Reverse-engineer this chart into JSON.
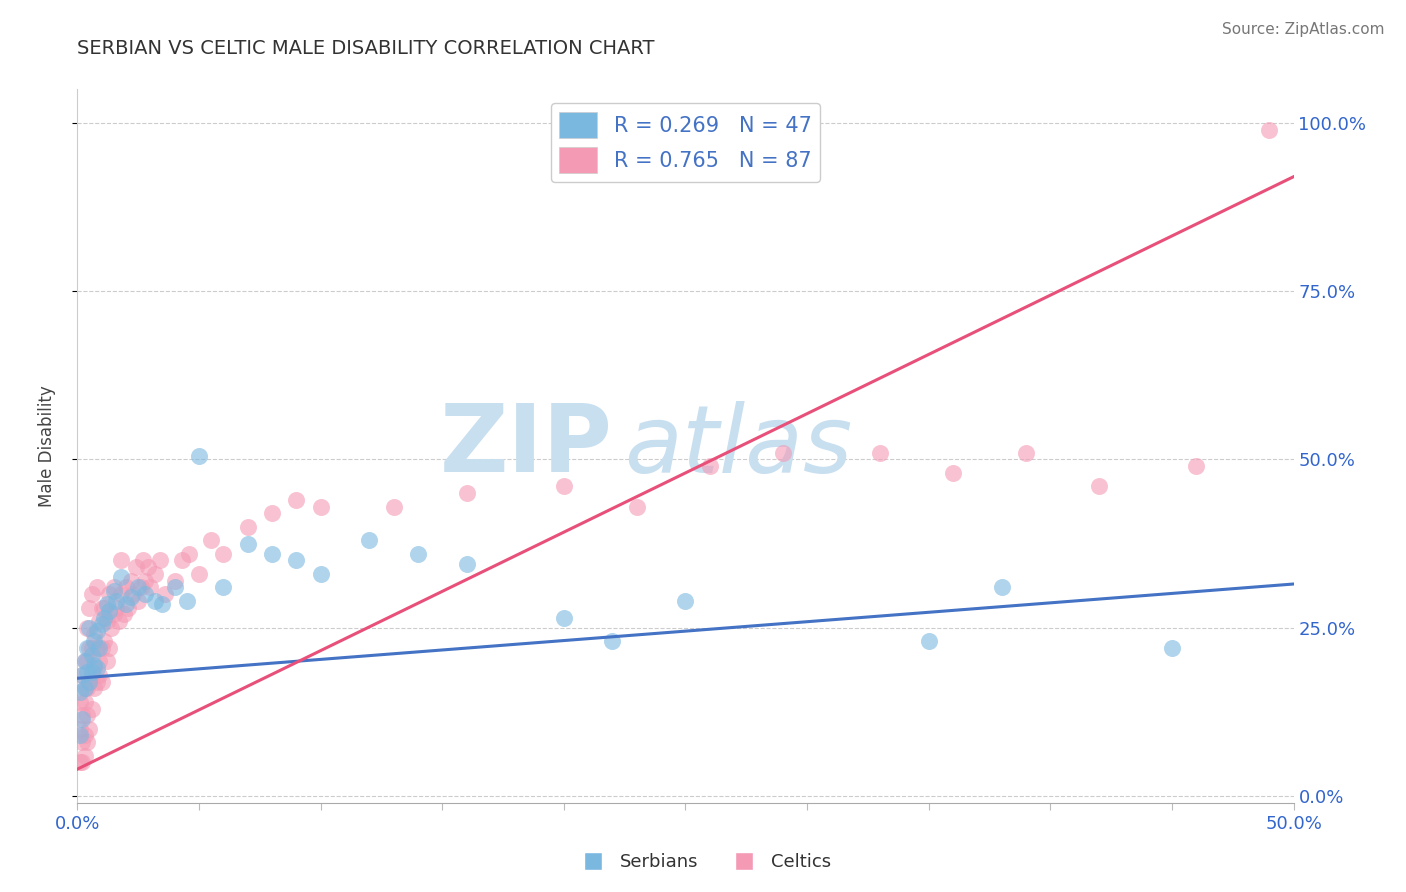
{
  "title": "SERBIAN VS CELTIC MALE DISABILITY CORRELATION CHART",
  "source": "Source: ZipAtlas.com",
  "ylabel": "Male Disability",
  "xlim": [
    0.0,
    0.5
  ],
  "ylim": [
    -0.01,
    1.05
  ],
  "xticks": [
    0.0,
    0.05,
    0.1,
    0.15,
    0.2,
    0.25,
    0.3,
    0.35,
    0.4,
    0.45,
    0.5
  ],
  "yticks": [
    0.0,
    0.25,
    0.5,
    0.75,
    1.0
  ],
  "ytick_labels": [
    "0.0%",
    "25.0%",
    "50.0%",
    "75.0%",
    "100.0%"
  ],
  "serbian_color": "#7ab8e0",
  "celtic_color": "#f49ab5",
  "serbian_line_color": "#4472c4",
  "celtic_line_color": "#e8507a",
  "serbian_R": 0.269,
  "serbian_N": 47,
  "celtic_R": 0.765,
  "celtic_N": 87,
  "watermark": "ZIPatlas",
  "watermark_color": "#c8dff0",
  "serbian_line_x": [
    0.0,
    0.5
  ],
  "serbian_line_y": [
    0.175,
    0.315
  ],
  "celtic_line_x": [
    0.0,
    0.5
  ],
  "celtic_line_y": [
    0.04,
    0.92
  ],
  "serbian_x": [
    0.001,
    0.001,
    0.002,
    0.002,
    0.003,
    0.003,
    0.004,
    0.004,
    0.005,
    0.005,
    0.006,
    0.006,
    0.007,
    0.007,
    0.008,
    0.008,
    0.009,
    0.01,
    0.011,
    0.012,
    0.013,
    0.015,
    0.016,
    0.018,
    0.02,
    0.022,
    0.025,
    0.028,
    0.032,
    0.035,
    0.04,
    0.045,
    0.05,
    0.06,
    0.07,
    0.08,
    0.09,
    0.1,
    0.12,
    0.14,
    0.16,
    0.2,
    0.22,
    0.25,
    0.35,
    0.38,
    0.45
  ],
  "serbian_y": [
    0.155,
    0.09,
    0.18,
    0.115,
    0.2,
    0.16,
    0.22,
    0.185,
    0.17,
    0.25,
    0.21,
    0.185,
    0.23,
    0.195,
    0.245,
    0.19,
    0.22,
    0.255,
    0.265,
    0.285,
    0.275,
    0.305,
    0.29,
    0.325,
    0.285,
    0.295,
    0.31,
    0.3,
    0.29,
    0.285,
    0.31,
    0.29,
    0.505,
    0.31,
    0.375,
    0.36,
    0.35,
    0.33,
    0.38,
    0.36,
    0.345,
    0.265,
    0.23,
    0.29,
    0.23,
    0.31,
    0.22
  ],
  "celtic_x": [
    0.001,
    0.001,
    0.001,
    0.002,
    0.002,
    0.002,
    0.002,
    0.003,
    0.003,
    0.003,
    0.003,
    0.003,
    0.004,
    0.004,
    0.004,
    0.004,
    0.004,
    0.005,
    0.005,
    0.005,
    0.005,
    0.006,
    0.006,
    0.006,
    0.006,
    0.007,
    0.007,
    0.007,
    0.008,
    0.008,
    0.008,
    0.009,
    0.009,
    0.009,
    0.01,
    0.01,
    0.01,
    0.011,
    0.011,
    0.012,
    0.012,
    0.013,
    0.013,
    0.014,
    0.015,
    0.015,
    0.016,
    0.017,
    0.018,
    0.018,
    0.019,
    0.02,
    0.021,
    0.022,
    0.023,
    0.024,
    0.025,
    0.026,
    0.027,
    0.028,
    0.029,
    0.03,
    0.032,
    0.034,
    0.036,
    0.04,
    0.043,
    0.046,
    0.05,
    0.055,
    0.06,
    0.07,
    0.08,
    0.09,
    0.1,
    0.13,
    0.16,
    0.2,
    0.23,
    0.26,
    0.29,
    0.33,
    0.36,
    0.39,
    0.42,
    0.46,
    0.49
  ],
  "celtic_y": [
    0.1,
    0.05,
    0.14,
    0.08,
    0.12,
    0.18,
    0.05,
    0.16,
    0.09,
    0.2,
    0.06,
    0.14,
    0.12,
    0.2,
    0.08,
    0.16,
    0.25,
    0.1,
    0.22,
    0.17,
    0.28,
    0.13,
    0.22,
    0.18,
    0.3,
    0.16,
    0.24,
    0.19,
    0.22,
    0.31,
    0.17,
    0.2,
    0.26,
    0.18,
    0.22,
    0.28,
    0.17,
    0.23,
    0.28,
    0.2,
    0.26,
    0.22,
    0.3,
    0.25,
    0.27,
    0.31,
    0.28,
    0.26,
    0.3,
    0.35,
    0.27,
    0.31,
    0.28,
    0.32,
    0.3,
    0.34,
    0.29,
    0.31,
    0.35,
    0.32,
    0.34,
    0.31,
    0.33,
    0.35,
    0.3,
    0.32,
    0.35,
    0.36,
    0.33,
    0.38,
    0.36,
    0.4,
    0.42,
    0.44,
    0.43,
    0.43,
    0.45,
    0.46,
    0.43,
    0.49,
    0.51,
    0.51,
    0.48,
    0.51,
    0.46,
    0.49,
    0.99
  ]
}
